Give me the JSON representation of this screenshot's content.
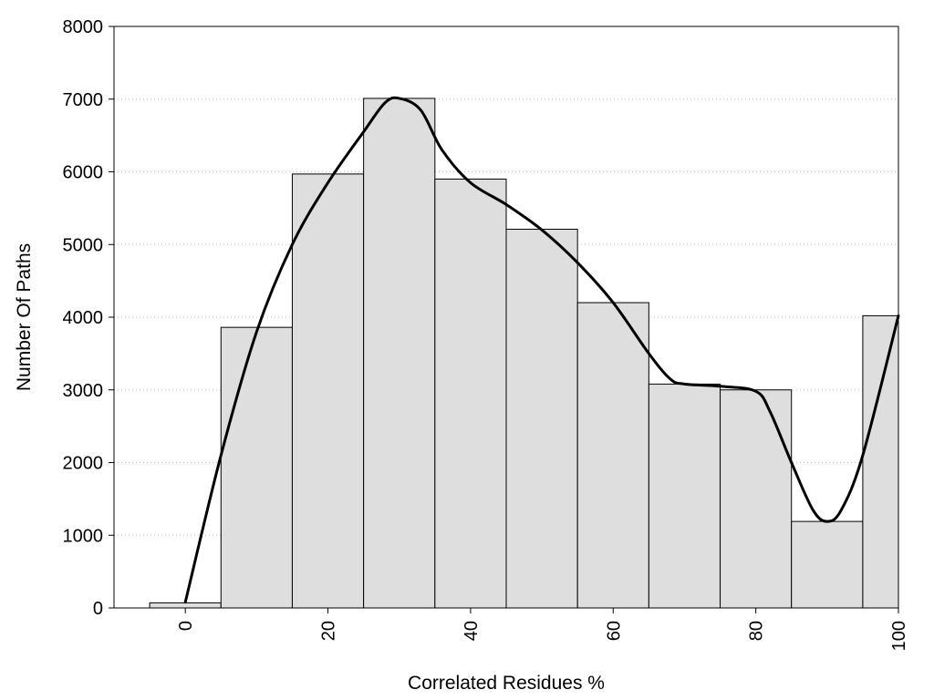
{
  "chart_data": {
    "type": "bar",
    "title": "",
    "xlabel": "Correlated Residues %",
    "ylabel": "Number Of Paths",
    "bin_width": 10,
    "bins": [
      {
        "x": 0,
        "value": 70
      },
      {
        "x": 10,
        "value": 3860
      },
      {
        "x": 20,
        "value": 5970
      },
      {
        "x": 30,
        "value": 7010
      },
      {
        "x": 40,
        "value": 5900
      },
      {
        "x": 50,
        "value": 5210
      },
      {
        "x": 60,
        "value": 4200
      },
      {
        "x": 70,
        "value": 3080
      },
      {
        "x": 80,
        "value": 3000
      },
      {
        "x": 90,
        "value": 1190
      },
      {
        "x": 100,
        "value": 4020
      }
    ],
    "xlim": [
      -10,
      100
    ],
    "ylim": [
      0,
      8000
    ],
    "x_ticks": [
      0,
      20,
      40,
      60,
      80,
      100
    ],
    "y_ticks": [
      0,
      1000,
      2000,
      3000,
      4000,
      5000,
      6000,
      7000,
      8000
    ],
    "grid": "horizontal dotted",
    "bar_color": "#dedede",
    "bar_edge_color": "#000000",
    "curve": {
      "type": "smooth-line",
      "color": "#000000",
      "points": [
        [
          0,
          80
        ],
        [
          5,
          2100
        ],
        [
          10,
          3800
        ],
        [
          15,
          5000
        ],
        [
          20,
          5850
        ],
        [
          25,
          6550
        ],
        [
          28,
          6950
        ],
        [
          30,
          7010
        ],
        [
          33,
          6850
        ],
        [
          36,
          6300
        ],
        [
          40,
          5850
        ],
        [
          45,
          5550
        ],
        [
          50,
          5200
        ],
        [
          55,
          4750
        ],
        [
          60,
          4200
        ],
        [
          65,
          3500
        ],
        [
          68,
          3150
        ],
        [
          70,
          3080
        ],
        [
          75,
          3050
        ],
        [
          80,
          2980
        ],
        [
          82,
          2700
        ],
        [
          85,
          2000
        ],
        [
          88,
          1350
        ],
        [
          90,
          1190
        ],
        [
          92,
          1350
        ],
        [
          95,
          2100
        ],
        [
          100,
          4020
        ]
      ]
    }
  }
}
